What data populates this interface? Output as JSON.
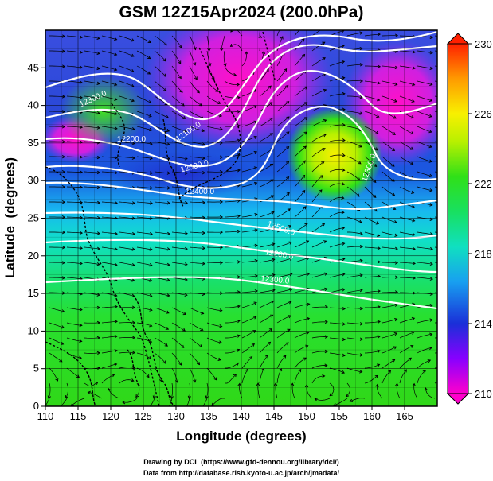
{
  "chart_data": {
    "type": "contour-map",
    "title": "GSM 12Z15Apr2024 (200.0hPa)",
    "xlabel": "Longitude (degrees)",
    "ylabel": "Latitude  (degrees)",
    "xlim": [
      110,
      170
    ],
    "ylim": [
      0,
      50
    ],
    "x_ticks": [
      "110",
      "115",
      "120",
      "125",
      "130",
      "135",
      "140",
      "145",
      "150",
      "155",
      "160",
      "165"
    ],
    "y_ticks": [
      "0",
      "5",
      "10",
      "15",
      "20",
      "25",
      "30",
      "35",
      "40",
      "45"
    ],
    "colorbar": {
      "min": 210,
      "max": 230,
      "tick_labels": [
        "210",
        "214",
        "218",
        "222",
        "226",
        "230"
      ]
    },
    "contour_labels": [
      "12300.0",
      "12200.0",
      "12100.0",
      "12000.0",
      "12400.0",
      "12500.0",
      "12200.0",
      "12300.0",
      "12300.0"
    ]
  },
  "credits": {
    "line1": "Drawing by DCL (https://www.gfd-dennou.org/library/dcl/)",
    "line2": "Data from http://database.rish.kyoto-u.ac.jp/arch/jmadata/"
  }
}
